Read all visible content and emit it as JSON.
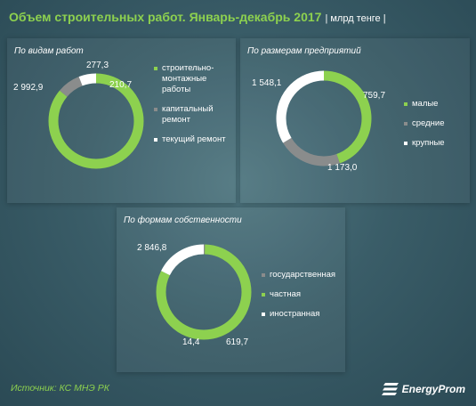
{
  "header": {
    "title": "Объем строительных работ. Январь-декабрь 2017",
    "unit": "| млрд тенге |"
  },
  "colors": {
    "green": "#8dd14f",
    "gray": "#8a8c8c",
    "white": "#ffffff"
  },
  "chart_data": [
    {
      "type": "pie",
      "title": "По видам работ",
      "categories": [
        "строительно-монтажные работы",
        "капитальный ремонт",
        "текущий ремонт"
      ],
      "values": [
        2992.9,
        277.3,
        210.7
      ],
      "value_labels": [
        "2 992,9",
        "277,3",
        "210,7"
      ],
      "legend_lines": [
        [
          "строительно-",
          "монтажные",
          "работы"
        ],
        [
          "капитальный",
          "ремонт"
        ],
        [
          "текущий ремонт"
        ]
      ],
      "colors": [
        "#8dd14f",
        "#8a8c8c",
        "#ffffff"
      ],
      "legend_position": "right"
    },
    {
      "type": "pie",
      "title": "По размерам предприятий",
      "categories": [
        "малые",
        "средние",
        "крупные"
      ],
      "values": [
        1548.1,
        759.7,
        1173.0
      ],
      "value_labels": [
        "1 548,1",
        "759,7",
        "1 173,0"
      ],
      "legend_lines": [
        [
          "малые"
        ],
        [
          "средние"
        ],
        [
          "крупные"
        ]
      ],
      "colors": [
        "#8dd14f",
        "#8a8c8c",
        "#ffffff"
      ],
      "legend_position": "right"
    },
    {
      "type": "pie",
      "title": "По формам собственности",
      "categories": [
        "государственная",
        "частная",
        "иностранная"
      ],
      "values": [
        14.4,
        2846.8,
        619.7
      ],
      "value_labels": [
        "14,4",
        "2 846,8",
        "619,7"
      ],
      "legend_lines": [
        [
          "государственная"
        ],
        [
          "частная"
        ],
        [
          "иностранная"
        ]
      ],
      "colors": [
        "#8a8c8c",
        "#8dd14f",
        "#ffffff"
      ],
      "legend_position": "right"
    }
  ],
  "footer": {
    "source": "Источник: КС МНЭ РК",
    "logo_text": "EnergyProm"
  }
}
